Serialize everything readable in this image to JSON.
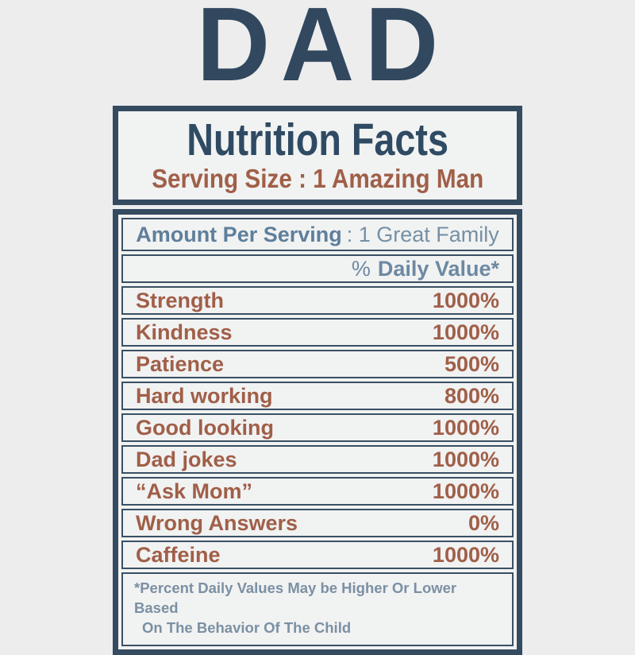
{
  "colors": {
    "background": "#ededee",
    "navy_border": "#344b60",
    "navy_text": "#2f4a63",
    "rust_text": "#a05f48",
    "steel_blue_bold": "#5e7f9c",
    "steel_blue_regular": "#7590a6",
    "footnote_blue": "#7b90a3"
  },
  "title": "DAD",
  "label": {
    "header": {
      "title": "Nutrition Facts",
      "serving_line": "Serving Size : 1 Amazing Man"
    },
    "amount_per_serving": {
      "bold": "Amount Per Serving",
      "rest": ": 1 Great Family"
    },
    "daily_value_header": {
      "prefix": "%",
      "text": "Daily Value*"
    },
    "rows": [
      {
        "name": "Strength",
        "value": "1000%"
      },
      {
        "name": "Kindness",
        "value": "1000%"
      },
      {
        "name": "Patience",
        "value": "500%"
      },
      {
        "name": "Hard working",
        "value": "800%"
      },
      {
        "name": "Good looking",
        "value": "1000%"
      },
      {
        "name": "Dad jokes",
        "value": "1000%"
      },
      {
        "name": "“Ask Mom”",
        "value": "1000%"
      },
      {
        "name": "Wrong Answers",
        "value": "0%"
      },
      {
        "name": "Caffeine",
        "value": "1000%"
      }
    ],
    "footnote": {
      "line1": "*Percent Daily Values May be Higher Or Lower Based",
      "line2": "On The Behavior Of The Child"
    }
  }
}
